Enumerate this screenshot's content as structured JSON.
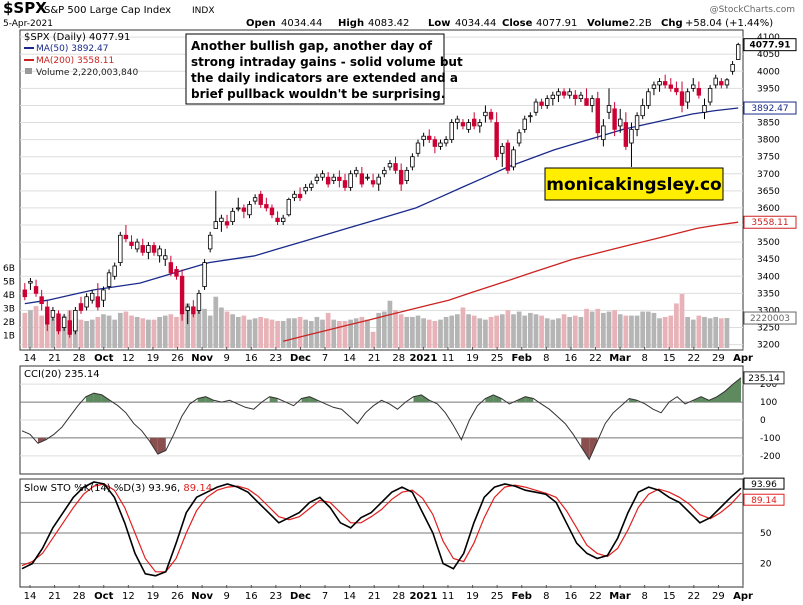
{
  "header": {
    "symbol": "$SPX",
    "name": "S&P 500 Large Cap Index",
    "exchange": "INDX",
    "date": "5-Apr-2021",
    "open_label": "Open",
    "open": "4034.44",
    "high_label": "High",
    "high": "4083.42",
    "low_label": "Low",
    "low": "4034.44",
    "close_label": "Close",
    "close": "4077.91",
    "volume_label": "Volume",
    "volume": "2.2B",
    "chg_label": "Chg",
    "chg": "+58.04 (+1.44%)",
    "watermark": "@StockCharts.com"
  },
  "legend": {
    "price": "$SPX (Daily) 4077.91",
    "ma50": "MA(50) 3892.47",
    "ma200": "MA(200) 3558.11",
    "volume": "Volume 2,220,003,840"
  },
  "annotation": [
    "Another bullish gap, another day of",
    "strong intraday gains - solid volume but",
    "the daily indicators are extended and a",
    "brief pullback wouldn't be surprising."
  ],
  "brand": "monicakingsley.co",
  "price_axis": {
    "ticks": [
      "4100",
      "4050",
      "4000",
      "3950",
      "3900",
      "3850",
      "3800",
      "3750",
      "3700",
      "3650",
      "3600",
      "3550",
      "3500",
      "3450",
      "3400",
      "3350",
      "3300",
      "3250",
      "3200"
    ],
    "last_price": "4077.91",
    "ma50_value": "3892.47",
    "ma200_value": "3558.11",
    "volume_value": "2220003"
  },
  "volume_axis": {
    "ticks": [
      "6B",
      "5B",
      "4B",
      "3B",
      "2B",
      "1B"
    ]
  },
  "cci": {
    "label": "CCI(20) 235.14",
    "value_tag": "235.14",
    "ticks": [
      "200",
      "100",
      "0",
      "-100",
      "-200"
    ]
  },
  "sto": {
    "label_main": "Slow STO %K(14) %D(3) 93.96,",
    "label_d": "89.14",
    "k_tag": "93.96",
    "d_tag": "89.14",
    "ticks": [
      "80",
      "50",
      "20"
    ]
  },
  "x_axis": {
    "labels": [
      "14",
      "21",
      "28",
      "Oct",
      "12",
      "19",
      "26",
      "Nov",
      "9",
      "16",
      "23",
      "Dec",
      "7",
      "14",
      "21",
      "28",
      "2021",
      "11",
      "19",
      "25",
      "Feb",
      "8",
      "16",
      "22",
      "Mar",
      "8",
      "15",
      "22",
      "29",
      "Apr"
    ],
    "bold_labels": [
      "Oct",
      "Nov",
      "Dec",
      "2021",
      "Feb",
      "Mar",
      "Apr"
    ]
  },
  "colors": {
    "up": "#000000",
    "down": "#cc0033",
    "ma50": "#1a2a8a",
    "ma200": "#cc2222",
    "cci_fill": "#5f8a5f",
    "cci_neg": "#8a5050",
    "sto_k": "#000000",
    "sto_d": "#e02020",
    "brand_bg": "#ffee00"
  },
  "chart_data": {
    "type": "candlestick",
    "title": "$SPX S&P 500 Large Cap Index INDX",
    "period": "Sep 14, 2020 - Apr 5, 2021 (daily)",
    "ylim": [
      3200,
      4110
    ],
    "ohlc": [
      [
        3360,
        3380,
        3330,
        3340
      ],
      [
        3380,
        3395,
        3360,
        3385
      ],
      [
        3370,
        3390,
        3340,
        3350
      ],
      [
        3340,
        3360,
        3300,
        3320
      ],
      [
        3310,
        3330,
        3240,
        3260
      ],
      [
        3280,
        3310,
        3270,
        3300
      ],
      [
        3290,
        3300,
        3230,
        3240
      ],
      [
        3250,
        3290,
        3240,
        3280
      ],
      [
        3270,
        3300,
        3220,
        3230
      ],
      [
        3240,
        3310,
        3230,
        3300
      ],
      [
        3320,
        3340,
        3290,
        3300
      ],
      [
        3310,
        3350,
        3300,
        3340
      ],
      [
        3330,
        3360,
        3320,
        3350
      ],
      [
        3340,
        3380,
        3300,
        3310
      ],
      [
        3330,
        3370,
        3310,
        3360
      ],
      [
        3370,
        3420,
        3360,
        3410
      ],
      [
        3400,
        3440,
        3390,
        3430
      ],
      [
        3440,
        3530,
        3430,
        3520
      ],
      [
        3520,
        3550,
        3500,
        3510
      ],
      [
        3500,
        3520,
        3480,
        3490
      ],
      [
        3480,
        3510,
        3470,
        3500
      ],
      [
        3490,
        3510,
        3460,
        3470
      ],
      [
        3470,
        3500,
        3450,
        3490
      ],
      [
        3490,
        3500,
        3460,
        3470
      ],
      [
        3460,
        3490,
        3440,
        3480
      ],
      [
        3450,
        3480,
        3430,
        3460
      ],
      [
        3440,
        3460,
        3400,
        3410
      ],
      [
        3420,
        3430,
        3390,
        3400
      ],
      [
        3400,
        3420,
        3270,
        3290
      ],
      [
        3300,
        3320,
        3260,
        3310
      ],
      [
        3310,
        3330,
        3280,
        3290
      ],
      [
        3300,
        3360,
        3290,
        3350
      ],
      [
        3370,
        3450,
        3360,
        3440
      ],
      [
        3480,
        3530,
        3470,
        3520
      ],
      [
        3540,
        3650,
        3540,
        3560
      ],
      [
        3560,
        3580,
        3530,
        3570
      ],
      [
        3560,
        3580,
        3540,
        3550
      ],
      [
        3560,
        3600,
        3550,
        3590
      ],
      [
        3600,
        3630,
        3590,
        3600
      ],
      [
        3600,
        3610,
        3570,
        3590
      ],
      [
        3580,
        3620,
        3570,
        3610
      ],
      [
        3620,
        3640,
        3610,
        3630
      ],
      [
        3640,
        3650,
        3600,
        3610
      ],
      [
        3610,
        3630,
        3590,
        3600
      ],
      [
        3600,
        3610,
        3570,
        3580
      ],
      [
        3570,
        3590,
        3550,
        3560
      ],
      [
        3560,
        3580,
        3550,
        3570
      ],
      [
        3580,
        3630,
        3575,
        3625
      ],
      [
        3630,
        3650,
        3620,
        3640
      ],
      [
        3640,
        3660,
        3620,
        3630
      ],
      [
        3650,
        3670,
        3640,
        3660
      ],
      [
        3660,
        3680,
        3650,
        3670
      ],
      [
        3680,
        3700,
        3670,
        3690
      ],
      [
        3690,
        3710,
        3680,
        3700
      ],
      [
        3690,
        3705,
        3660,
        3670
      ],
      [
        3680,
        3700,
        3670,
        3690
      ],
      [
        3690,
        3710,
        3660,
        3680
      ],
      [
        3680,
        3700,
        3650,
        3660
      ],
      [
        3660,
        3710,
        3650,
        3700
      ],
      [
        3700,
        3720,
        3690,
        3710
      ],
      [
        3700,
        3720,
        3660,
        3670
      ],
      [
        3690,
        3700,
        3680,
        3690
      ],
      [
        3680,
        3700,
        3660,
        3670
      ],
      [
        3670,
        3700,
        3650,
        3690
      ],
      [
        3700,
        3720,
        3690,
        3710
      ],
      [
        3720,
        3740,
        3710,
        3730
      ],
      [
        3730,
        3750,
        3700,
        3710
      ],
      [
        3710,
        3730,
        3650,
        3670
      ],
      [
        3680,
        3720,
        3670,
        3710
      ],
      [
        3720,
        3760,
        3710,
        3750
      ],
      [
        3760,
        3800,
        3750,
        3790
      ],
      [
        3800,
        3820,
        3780,
        3810
      ],
      [
        3810,
        3830,
        3790,
        3800
      ],
      [
        3800,
        3810,
        3760,
        3780
      ],
      [
        3780,
        3800,
        3770,
        3790
      ],
      [
        3790,
        3810,
        3780,
        3800
      ],
      [
        3800,
        3860,
        3790,
        3850
      ],
      [
        3850,
        3870,
        3830,
        3860
      ],
      [
        3850,
        3860,
        3830,
        3840
      ],
      [
        3830,
        3860,
        3820,
        3850
      ],
      [
        3860,
        3880,
        3830,
        3840
      ],
      [
        3840,
        3860,
        3820,
        3850
      ],
      [
        3870,
        3900,
        3850,
        3880
      ],
      [
        3880,
        3890,
        3850,
        3860
      ],
      [
        3850,
        3880,
        3740,
        3750
      ],
      [
        3760,
        3790,
        3720,
        3780
      ],
      [
        3790,
        3800,
        3700,
        3710
      ],
      [
        3720,
        3780,
        3710,
        3770
      ],
      [
        3790,
        3830,
        3780,
        3820
      ],
      [
        3830,
        3870,
        3820,
        3860
      ],
      [
        3870,
        3880,
        3850,
        3870
      ],
      [
        3880,
        3920,
        3870,
        3910
      ],
      [
        3910,
        3920,
        3890,
        3900
      ],
      [
        3900,
        3930,
        3890,
        3920
      ],
      [
        3920,
        3940,
        3900,
        3930
      ],
      [
        3930,
        3950,
        3910,
        3940
      ],
      [
        3940,
        3950,
        3920,
        3930
      ],
      [
        3930,
        3950,
        3920,
        3940
      ],
      [
        3930,
        3945,
        3900,
        3920
      ],
      [
        3920,
        3940,
        3910,
        3930
      ],
      [
        3920,
        3950,
        3900,
        3900
      ],
      [
        3900,
        3930,
        3880,
        3920
      ],
      [
        3920,
        3940,
        3800,
        3820
      ],
      [
        3800,
        3860,
        3780,
        3840
      ],
      [
        3880,
        3950,
        3860,
        3900
      ],
      [
        3890,
        3910,
        3810,
        3830
      ],
      [
        3840,
        3890,
        3820,
        3860
      ],
      [
        3850,
        3880,
        3770,
        3780
      ],
      [
        3790,
        3850,
        3720,
        3830
      ],
      [
        3830,
        3880,
        3810,
        3870
      ],
      [
        3870,
        3920,
        3860,
        3900
      ],
      [
        3900,
        3950,
        3890,
        3940
      ],
      [
        3950,
        3970,
        3930,
        3960
      ],
      [
        3960,
        3980,
        3940,
        3970
      ],
      [
        3970,
        3990,
        3950,
        3960
      ],
      [
        3960,
        3980,
        3940,
        3950
      ],
      [
        3950,
        3970,
        3930,
        3940
      ],
      [
        3940,
        3970,
        3880,
        3900
      ],
      [
        3910,
        3950,
        3890,
        3940
      ],
      [
        3950,
        3980,
        3940,
        3960
      ],
      [
        3950,
        3970,
        3920,
        3930
      ],
      [
        3880,
        3920,
        3860,
        3900
      ],
      [
        3910,
        3960,
        3900,
        3950
      ],
      [
        3960,
        3990,
        3950,
        3980
      ],
      [
        3970,
        3980,
        3950,
        3960
      ],
      [
        3960,
        3980,
        3950,
        3975
      ],
      [
        4000,
        4030,
        3990,
        4020
      ],
      [
        4034.44,
        4083.42,
        4034.44,
        4077.91
      ]
    ],
    "ma50": [
      3320,
      3330,
      3345,
      3360,
      3370,
      3380,
      3400,
      3420,
      3440,
      3450,
      3460,
      3480,
      3500,
      3520,
      3540,
      3560,
      3580,
      3600,
      3630,
      3660,
      3690,
      3720,
      3745,
      3770,
      3790,
      3810,
      3830,
      3845,
      3860,
      3875,
      3885,
      3892.47
    ],
    "ma200": [
      3210,
      3225,
      3240,
      3255,
      3270,
      3285,
      3300,
      3315,
      3330,
      3350,
      3370,
      3390,
      3410,
      3430,
      3450,
      3465,
      3480,
      3495,
      3510,
      3525,
      3540,
      3550,
      3558.11
    ],
    "volume_millions": [
      2600,
      2800,
      3100,
      2400,
      2500,
      2200,
      2300,
      2400,
      2800,
      2200,
      2100,
      2000,
      2100,
      2300,
      2500,
      2400,
      2100,
      2600,
      2700,
      2400,
      2300,
      2200,
      2100,
      2100,
      2300,
      2400,
      2500,
      2300,
      2600,
      3300,
      3100,
      2900,
      2900,
      2400,
      3800,
      3000,
      2700,
      2500,
      2300,
      2400,
      2100,
      2200,
      2300,
      2200,
      2100,
      2000,
      2000,
      2200,
      2200,
      2300,
      2100,
      2000,
      2300,
      2100,
      2600,
      2100,
      2000,
      2000,
      2100,
      2200,
      2300,
      2100,
      1200,
      2600,
      2700,
      3500,
      2800,
      2500,
      2300,
      2300,
      2400,
      2200,
      2100,
      2000,
      2100,
      2300,
      2400,
      2500,
      3000,
      2500,
      2400,
      2200,
      2100,
      2300,
      2400,
      2500,
      2800,
      2500,
      2700,
      2400,
      2600,
      2500,
      2400,
      2200,
      2100,
      2200,
      2500,
      2300,
      2400,
      2300,
      2900,
      2700,
      2900,
      2600,
      2700,
      2800,
      2500,
      2400,
      2400,
      2400,
      2700,
      2700,
      2600,
      2200,
      2300,
      2400,
      3300,
      4000,
      2300,
      2100,
      2400,
      2300,
      2200,
      2300,
      2200,
      2220
    ],
    "cci": [
      -60,
      -80,
      -130,
      -110,
      -80,
      -40,
      20,
      80,
      130,
      150,
      140,
      110,
      80,
      40,
      -20,
      -60,
      -120,
      -190,
      -170,
      -80,
      20,
      90,
      120,
      130,
      110,
      100,
      110,
      90,
      70,
      60,
      100,
      130,
      120,
      100,
      80,
      120,
      130,
      110,
      90,
      70,
      60,
      20,
      -20,
      40,
      80,
      110,
      90,
      60,
      100,
      130,
      140,
      110,
      90,
      40,
      -30,
      -110,
      0,
      80,
      120,
      140,
      120,
      90,
      110,
      130,
      120,
      90,
      60,
      20,
      -20,
      -80,
      -150,
      -220,
      -120,
      -20,
      40,
      80,
      120,
      110,
      90,
      60,
      40,
      100,
      130,
      90,
      110,
      130,
      110,
      130,
      160,
      200,
      235.14
    ],
    "sto_k": [
      15,
      20,
      35,
      55,
      70,
      85,
      95,
      100,
      98,
      85,
      60,
      30,
      10,
      8,
      12,
      40,
      70,
      85,
      90,
      95,
      98,
      95,
      90,
      80,
      70,
      60,
      65,
      70,
      80,
      85,
      75,
      60,
      55,
      65,
      70,
      80,
      90,
      95,
      90,
      70,
      50,
      20,
      15,
      30,
      60,
      85,
      95,
      98,
      96,
      92,
      90,
      88,
      80,
      60,
      40,
      30,
      25,
      28,
      45,
      70,
      90,
      95,
      92,
      85,
      80,
      70,
      60,
      65,
      75,
      85,
      93.96
    ],
    "sto_d": [
      18,
      22,
      30,
      45,
      60,
      75,
      88,
      96,
      98,
      92,
      75,
      50,
      25,
      12,
      12,
      25,
      50,
      72,
      85,
      92,
      95,
      96,
      93,
      86,
      76,
      66,
      63,
      66,
      74,
      82,
      80,
      70,
      60,
      60,
      66,
      73,
      83,
      90,
      92,
      84,
      68,
      42,
      25,
      22,
      40,
      65,
      85,
      95,
      97,
      95,
      92,
      89,
      85,
      72,
      55,
      38,
      30,
      27,
      35,
      53,
      75,
      88,
      93,
      90,
      85,
      78,
      68,
      64,
      70,
      78,
      89.14
    ]
  }
}
